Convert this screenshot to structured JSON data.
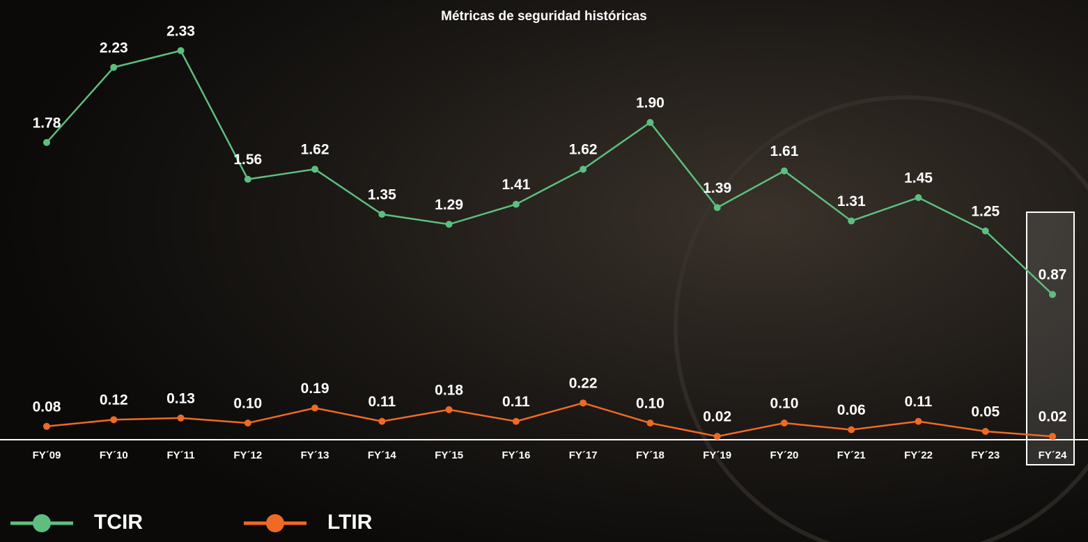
{
  "chart_data": {
    "type": "line",
    "title": "Métricas de seguridad históricas",
    "categories": [
      "FY´09",
      "FY´10",
      "FY´11",
      "FY´12",
      "FY´13",
      "FY´14",
      "FY´15",
      "FY´16",
      "FY´17",
      "FY´18",
      "FY´19",
      "FY´20",
      "FY´21",
      "FY´22",
      "FY´23",
      "FY´24"
    ],
    "series": [
      {
        "name": "TCIR",
        "color": "#5dbf7f",
        "values": [
          1.78,
          2.23,
          2.33,
          1.56,
          1.62,
          1.35,
          1.29,
          1.41,
          1.62,
          1.9,
          1.39,
          1.61,
          1.31,
          1.45,
          1.25,
          0.87
        ],
        "value_labels": [
          "1.78",
          "2.23",
          "2.33",
          "1.56",
          "1.62",
          "1.35",
          "1.29",
          "1.41",
          "1.62",
          "1.90",
          "1.39",
          "1.61",
          "1.31",
          "1.45",
          "1.25",
          "0.87"
        ]
      },
      {
        "name": "LTIR",
        "color": "#ee6a25",
        "values": [
          0.08,
          0.12,
          0.13,
          0.1,
          0.19,
          0.11,
          0.18,
          0.11,
          0.22,
          0.1,
          0.02,
          0.1,
          0.06,
          0.11,
          0.05,
          0.02
        ],
        "value_labels": [
          "0.08",
          "0.12",
          "0.13",
          "0.10",
          "0.19",
          "0.11",
          "0.18",
          "0.11",
          "0.22",
          "0.10",
          "0.02",
          "0.10",
          "0.06",
          "0.11",
          "0.05",
          "0.02"
        ]
      }
    ]
  }
}
